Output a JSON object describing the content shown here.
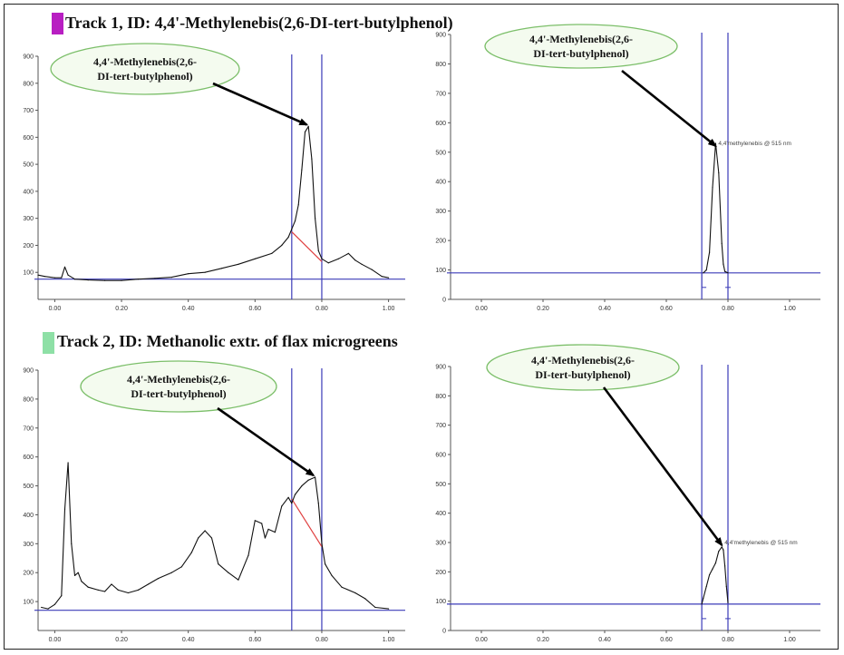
{
  "tracks": [
    {
      "title": "Track 1, ID: 4,4'-Methylenebis(2,6-DI-tert-butylphenol)",
      "swatch_color": "#b81ec2"
    },
    {
      "title": "Track 2, ID: Methanolic extr. of flax microgreens",
      "swatch_color": "#8ee0a6"
    }
  ],
  "colors": {
    "curve": "#111111",
    "axis_line": "#3b3bb8",
    "baseline_cut": "#e04040",
    "callout_fill": "#f4fbef",
    "callout_border": "#7cbf6a"
  },
  "chart_data": [
    {
      "type": "line",
      "panel": "track-1-densitogram",
      "callout": [
        "4,4'-Methylenebis(2,6-",
        "DI-tert-butylphenol)"
      ],
      "x": [
        -0.05,
        -0.03,
        0.0,
        0.02,
        0.03,
        0.04,
        0.06,
        0.1,
        0.15,
        0.2,
        0.25,
        0.3,
        0.35,
        0.4,
        0.45,
        0.5,
        0.55,
        0.6,
        0.65,
        0.68,
        0.7,
        0.71,
        0.72,
        0.73,
        0.74,
        0.75,
        0.76,
        0.77,
        0.78,
        0.79,
        0.8,
        0.82,
        0.85,
        0.88,
        0.9,
        0.92,
        0.95,
        0.98,
        1.0
      ],
      "y": [
        90,
        85,
        80,
        80,
        120,
        90,
        75,
        72,
        70,
        70,
        75,
        78,
        82,
        95,
        100,
        115,
        130,
        150,
        170,
        200,
        230,
        260,
        290,
        350,
        480,
        620,
        640,
        520,
        300,
        180,
        150,
        135,
        150,
        170,
        145,
        130,
        110,
        85,
        80
      ],
      "xticks": [
        "0.00",
        "0.20",
        "0.40",
        "0.60",
        "0.80",
        "1.00"
      ],
      "yticks": [
        "100",
        "200",
        "300",
        "400",
        "500",
        "600",
        "700",
        "800",
        "900"
      ],
      "xlim": [
        -0.05,
        1.05
      ],
      "ylim": [
        0,
        900
      ],
      "baseline_y": 75,
      "vlines": [
        0.71,
        0.8
      ],
      "cut_line": [
        [
          0.71,
          250
        ],
        [
          0.8,
          140
        ]
      ],
      "arrow_target": [
        0.755,
        640
      ],
      "peak_label": ""
    },
    {
      "type": "line",
      "panel": "track-1-peak",
      "callout": [
        "4,4'-Methylenebis(2,6-",
        "DI-tert-butylphenol)"
      ],
      "x": [
        0.72,
        0.73,
        0.74,
        0.75,
        0.76,
        0.77,
        0.78,
        0.785,
        0.79,
        0.8
      ],
      "y": [
        90,
        100,
        160,
        380,
        530,
        430,
        190,
        120,
        95,
        90
      ],
      "xticks": [
        "0.00",
        "0.20",
        "0.40",
        "0.60",
        "0.80",
        "1.00"
      ],
      "yticks": [
        "0",
        "100",
        "200",
        "300",
        "400",
        "500",
        "600",
        "700",
        "800",
        "900"
      ],
      "xlim": [
        -0.1,
        1.1
      ],
      "ylim": [
        0,
        900
      ],
      "baseline_y": 90,
      "vlines": [
        0.715,
        0.8
      ],
      "arrow_target": [
        0.76,
        515
      ],
      "peak_label": "4,4'methylenebis @ 515 nm"
    },
    {
      "type": "line",
      "panel": "track-2-densitogram",
      "callout": [
        "4,4'-Methylenebis(2,6-",
        "DI-tert-butylphenol)"
      ],
      "x": [
        -0.04,
        -0.02,
        0.0,
        0.02,
        0.03,
        0.04,
        0.05,
        0.06,
        0.07,
        0.08,
        0.1,
        0.13,
        0.15,
        0.17,
        0.19,
        0.22,
        0.25,
        0.28,
        0.31,
        0.35,
        0.38,
        0.41,
        0.43,
        0.45,
        0.47,
        0.49,
        0.52,
        0.55,
        0.58,
        0.6,
        0.62,
        0.63,
        0.64,
        0.66,
        0.68,
        0.7,
        0.71,
        0.72,
        0.74,
        0.76,
        0.78,
        0.79,
        0.8,
        0.81,
        0.83,
        0.86,
        0.9,
        0.93,
        0.96,
        1.0
      ],
      "y": [
        80,
        75,
        90,
        120,
        420,
        580,
        300,
        190,
        200,
        170,
        150,
        140,
        135,
        160,
        140,
        130,
        140,
        160,
        180,
        200,
        220,
        270,
        320,
        345,
        320,
        230,
        200,
        175,
        260,
        380,
        370,
        320,
        350,
        340,
        430,
        460,
        440,
        470,
        500,
        520,
        530,
        440,
        300,
        230,
        190,
        150,
        130,
        110,
        80,
        75
      ],
      "xticks": [
        "0.00",
        "0.20",
        "0.40",
        "0.60",
        "0.80",
        "1.00"
      ],
      "yticks": [
        "100",
        "200",
        "300",
        "400",
        "500",
        "600",
        "700",
        "800",
        "900"
      ],
      "xlim": [
        -0.05,
        1.05
      ],
      "ylim": [
        0,
        900
      ],
      "baseline_y": 70,
      "vlines": [
        0.71,
        0.8
      ],
      "cut_line": [
        [
          0.71,
          455
        ],
        [
          0.8,
          290
        ]
      ],
      "arrow_target": [
        0.775,
        530
      ],
      "peak_label": ""
    },
    {
      "type": "line",
      "panel": "track-2-peak",
      "callout": [
        "4,4'-Methylenebis(2,6-",
        "DI-tert-butylphenol)"
      ],
      "x": [
        0.715,
        0.72,
        0.73,
        0.74,
        0.75,
        0.76,
        0.77,
        0.78,
        0.785,
        0.79,
        0.795,
        0.8
      ],
      "y": [
        90,
        110,
        150,
        190,
        210,
        230,
        270,
        285,
        275,
        220,
        150,
        95
      ],
      "xticks": [
        "0.00",
        "0.20",
        "0.40",
        "0.60",
        "0.80",
        "1.00"
      ],
      "yticks": [
        "0",
        "100",
        "200",
        "300",
        "400",
        "500",
        "600",
        "700",
        "800",
        "900"
      ],
      "xlim": [
        -0.1,
        1.1
      ],
      "ylim": [
        0,
        900
      ],
      "baseline_y": 90,
      "vlines": [
        0.715,
        0.8
      ],
      "arrow_target": [
        0.78,
        285
      ],
      "peak_label": "4,4'methylenebis @ 515 nm"
    }
  ]
}
